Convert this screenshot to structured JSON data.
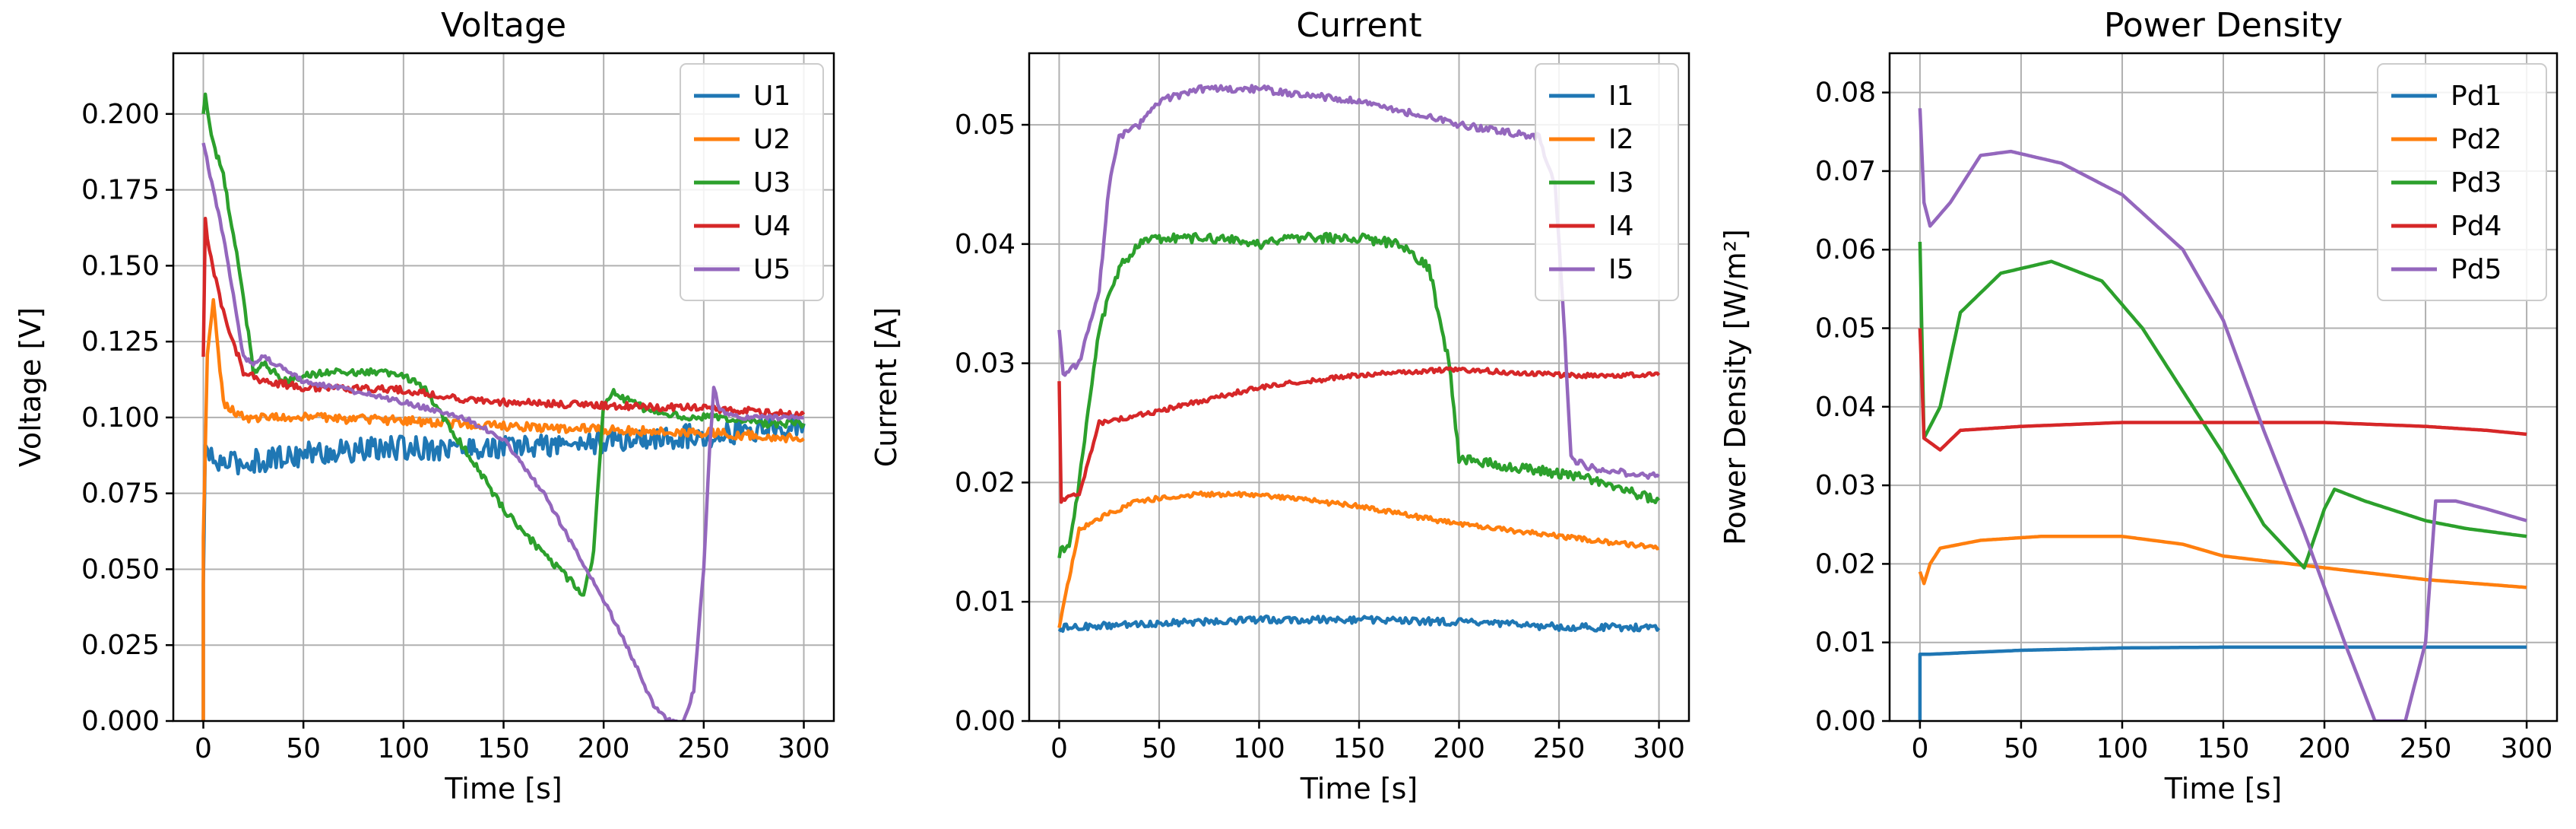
{
  "chart_data": [
    {
      "type": "line",
      "title": "Voltage",
      "xlabel": "Time [s]",
      "ylabel": "Voltage [V]",
      "xlim": [
        -15,
        315
      ],
      "ylim": [
        0,
        0.22
      ],
      "xticks": [
        0,
        50,
        100,
        150,
        200,
        250,
        300
      ],
      "yticks": [
        0,
        0.025,
        0.05,
        0.075,
        0.1,
        0.125,
        0.15,
        0.175,
        0.2
      ],
      "ytick_labels": [
        "0.000",
        "0.025",
        "0.050",
        "0.075",
        "0.100",
        "0.125",
        "0.150",
        "0.175",
        "0.200"
      ],
      "grid": true,
      "legend_position": "top-right",
      "series": [
        {
          "name": "U1",
          "color": "#1f77b4",
          "noise": 0.004,
          "points": [
            [
              0,
              0.0
            ],
            [
              0,
              0.045
            ],
            [
              1,
              0.09
            ],
            [
              5,
              0.085
            ],
            [
              20,
              0.085
            ],
            [
              50,
              0.088
            ],
            [
              100,
              0.09
            ],
            [
              150,
              0.09
            ],
            [
              200,
              0.092
            ],
            [
              250,
              0.094
            ],
            [
              300,
              0.098
            ]
          ]
        },
        {
          "name": "U2",
          "color": "#ff7f0e",
          "noise": 0.0015,
          "points": [
            [
              0,
              0.0
            ],
            [
              0,
              0.06
            ],
            [
              2,
              0.12
            ],
            [
              5,
              0.14
            ],
            [
              10,
              0.105
            ],
            [
              20,
              0.1
            ],
            [
              50,
              0.1
            ],
            [
              100,
              0.099
            ],
            [
              150,
              0.097
            ],
            [
              200,
              0.096
            ],
            [
              250,
              0.095
            ],
            [
              300,
              0.093
            ]
          ]
        },
        {
          "name": "U3",
          "color": "#2ca02c",
          "noise": 0.0012,
          "points": [
            [
              0,
              0.2
            ],
            [
              1,
              0.206
            ],
            [
              5,
              0.19
            ],
            [
              10,
              0.18
            ],
            [
              15,
              0.16
            ],
            [
              20,
              0.14
            ],
            [
              25,
              0.115
            ],
            [
              30,
              0.118
            ],
            [
              40,
              0.112
            ],
            [
              60,
              0.115
            ],
            [
              80,
              0.115
            ],
            [
              100,
              0.114
            ],
            [
              110,
              0.11
            ],
            [
              130,
              0.09
            ],
            [
              150,
              0.07
            ],
            [
              170,
              0.055
            ],
            [
              190,
              0.042
            ],
            [
              195,
              0.055
            ],
            [
              200,
              0.105
            ],
            [
              205,
              0.108
            ],
            [
              220,
              0.103
            ],
            [
              240,
              0.1
            ],
            [
              260,
              0.1
            ],
            [
              280,
              0.098
            ],
            [
              300,
              0.098
            ]
          ]
        },
        {
          "name": "U4",
          "color": "#d62728",
          "noise": 0.0012,
          "points": [
            [
              0,
              0.12
            ],
            [
              1,
              0.165
            ],
            [
              3,
              0.155
            ],
            [
              8,
              0.14
            ],
            [
              12,
              0.13
            ],
            [
              15,
              0.125
            ],
            [
              20,
              0.115
            ],
            [
              30,
              0.112
            ],
            [
              50,
              0.11
            ],
            [
              100,
              0.109
            ],
            [
              130,
              0.106
            ],
            [
              150,
              0.105
            ],
            [
              200,
              0.104
            ],
            [
              250,
              0.103
            ],
            [
              300,
              0.101
            ]
          ]
        },
        {
          "name": "U5",
          "color": "#9467bd",
          "noise": 0.0008,
          "points": [
            [
              0,
              0.19
            ],
            [
              5,
              0.175
            ],
            [
              10,
              0.16
            ],
            [
              15,
              0.14
            ],
            [
              20,
              0.12
            ],
            [
              25,
              0.118
            ],
            [
              30,
              0.12
            ],
            [
              50,
              0.112
            ],
            [
              80,
              0.108
            ],
            [
              100,
              0.105
            ],
            [
              130,
              0.1
            ],
            [
              150,
              0.093
            ],
            [
              170,
              0.075
            ],
            [
              200,
              0.04
            ],
            [
              215,
              0.02
            ],
            [
              225,
              0.005
            ],
            [
              232,
              0.0
            ],
            [
              240,
              0.0
            ],
            [
              245,
              0.01
            ],
            [
              250,
              0.05
            ],
            [
              253,
              0.09
            ],
            [
              255,
              0.11
            ],
            [
              258,
              0.102
            ],
            [
              270,
              0.1
            ],
            [
              300,
              0.1
            ]
          ]
        }
      ]
    },
    {
      "type": "line",
      "title": "Current",
      "xlabel": "Time [s]",
      "ylabel": "Current [A]",
      "xlim": [
        -15,
        315
      ],
      "ylim": [
        0,
        0.056
      ],
      "xticks": [
        0,
        50,
        100,
        150,
        200,
        250,
        300
      ],
      "yticks": [
        0,
        0.01,
        0.02,
        0.03,
        0.04,
        0.05
      ],
      "ytick_labels": [
        "0.00",
        "0.01",
        "0.02",
        "0.03",
        "0.04",
        "0.05"
      ],
      "grid": true,
      "legend_position": "top-right",
      "series": [
        {
          "name": "I1",
          "color": "#1f77b4",
          "noise": 0.0003,
          "points": [
            [
              0,
              0.0078
            ],
            [
              50,
              0.0082
            ],
            [
              100,
              0.0085
            ],
            [
              150,
              0.0085
            ],
            [
              200,
              0.0083
            ],
            [
              250,
              0.0079
            ],
            [
              300,
              0.0078
            ]
          ]
        },
        {
          "name": "I2",
          "color": "#ff7f0e",
          "noise": 0.0002,
          "points": [
            [
              0,
              0.008
            ],
            [
              5,
              0.012
            ],
            [
              10,
              0.016
            ],
            [
              20,
              0.017
            ],
            [
              40,
              0.0185
            ],
            [
              70,
              0.019
            ],
            [
              100,
              0.019
            ],
            [
              150,
              0.018
            ],
            [
              200,
              0.0165
            ],
            [
              250,
              0.0155
            ],
            [
              300,
              0.0145
            ]
          ]
        },
        {
          "name": "I3",
          "color": "#2ca02c",
          "noise": 0.0004,
          "points": [
            [
              0,
              0.014
            ],
            [
              5,
              0.015
            ],
            [
              10,
              0.02
            ],
            [
              20,
              0.033
            ],
            [
              30,
              0.038
            ],
            [
              40,
              0.04
            ],
            [
              50,
              0.0405
            ],
            [
              80,
              0.0405
            ],
            [
              100,
              0.04
            ],
            [
              120,
              0.0405
            ],
            [
              150,
              0.0405
            ],
            [
              170,
              0.04
            ],
            [
              185,
              0.038
            ],
            [
              195,
              0.03
            ],
            [
              200,
              0.022
            ],
            [
              220,
              0.0215
            ],
            [
              240,
              0.021
            ],
            [
              260,
              0.0205
            ],
            [
              280,
              0.0195
            ],
            [
              300,
              0.0185
            ]
          ]
        },
        {
          "name": "I4",
          "color": "#d62728",
          "noise": 0.0002,
          "points": [
            [
              0,
              0.0285
            ],
            [
              1,
              0.0185
            ],
            [
              10,
              0.019
            ],
            [
              20,
              0.025
            ],
            [
              50,
              0.026
            ],
            [
              100,
              0.028
            ],
            [
              150,
              0.029
            ],
            [
              200,
              0.0295
            ],
            [
              250,
              0.029
            ],
            [
              300,
              0.029
            ]
          ]
        },
        {
          "name": "I5",
          "color": "#9467bd",
          "noise": 0.0003,
          "points": [
            [
              0,
              0.033
            ],
            [
              2,
              0.029
            ],
            [
              10,
              0.03
            ],
            [
              20,
              0.036
            ],
            [
              25,
              0.045
            ],
            [
              30,
              0.049
            ],
            [
              40,
              0.05
            ],
            [
              50,
              0.052
            ],
            [
              70,
              0.053
            ],
            [
              100,
              0.053
            ],
            [
              150,
              0.052
            ],
            [
              200,
              0.05
            ],
            [
              240,
              0.049
            ],
            [
              248,
              0.045
            ],
            [
              252,
              0.035
            ],
            [
              256,
              0.022
            ],
            [
              270,
              0.021
            ],
            [
              300,
              0.0205
            ]
          ]
        }
      ]
    },
    {
      "type": "line",
      "title": "Power Density",
      "xlabel": "Time [s]",
      "ylabel": "Power Density [W/m²]",
      "xlim": [
        -15,
        315
      ],
      "ylim": [
        0,
        0.085
      ],
      "xticks": [
        0,
        50,
        100,
        150,
        200,
        250,
        300
      ],
      "yticks": [
        0,
        0.01,
        0.02,
        0.03,
        0.04,
        0.05,
        0.06,
        0.07,
        0.08
      ],
      "ytick_labels": [
        "0.00",
        "0.01",
        "0.02",
        "0.03",
        "0.04",
        "0.05",
        "0.06",
        "0.07",
        "0.08"
      ],
      "grid": true,
      "legend_position": "top-right",
      "series": [
        {
          "name": "Pd1",
          "color": "#1f77b4",
          "noise": 0.0,
          "points": [
            [
              0,
              0.0
            ],
            [
              0,
              0.0085
            ],
            [
              5,
              0.0085
            ],
            [
              50,
              0.009
            ],
            [
              100,
              0.0093
            ],
            [
              150,
              0.0094
            ],
            [
              200,
              0.0094
            ],
            [
              250,
              0.0094
            ],
            [
              300,
              0.0094
            ]
          ]
        },
        {
          "name": "Pd2",
          "color": "#ff7f0e",
          "noise": 0.0,
          "points": [
            [
              0,
              0.019
            ],
            [
              2,
              0.0175
            ],
            [
              5,
              0.02
            ],
            [
              10,
              0.022
            ],
            [
              30,
              0.023
            ],
            [
              60,
              0.0235
            ],
            [
              100,
              0.0235
            ],
            [
              130,
              0.0225
            ],
            [
              150,
              0.021
            ],
            [
              200,
              0.0195
            ],
            [
              250,
              0.018
            ],
            [
              300,
              0.017
            ]
          ]
        },
        {
          "name": "Pd3",
          "color": "#2ca02c",
          "noise": 0.0,
          "points": [
            [
              0,
              0.061
            ],
            [
              2,
              0.036
            ],
            [
              10,
              0.04
            ],
            [
              20,
              0.052
            ],
            [
              40,
              0.057
            ],
            [
              65,
              0.0585
            ],
            [
              90,
              0.056
            ],
            [
              110,
              0.05
            ],
            [
              130,
              0.042
            ],
            [
              150,
              0.034
            ],
            [
              170,
              0.025
            ],
            [
              190,
              0.0195
            ],
            [
              200,
              0.027
            ],
            [
              205,
              0.0295
            ],
            [
              220,
              0.028
            ],
            [
              250,
              0.0255
            ],
            [
              270,
              0.0245
            ],
            [
              300,
              0.0235
            ]
          ]
        },
        {
          "name": "Pd4",
          "color": "#d62728",
          "noise": 0.0,
          "points": [
            [
              0,
              0.05
            ],
            [
              2,
              0.036
            ],
            [
              10,
              0.0345
            ],
            [
              20,
              0.037
            ],
            [
              50,
              0.0375
            ],
            [
              100,
              0.038
            ],
            [
              150,
              0.038
            ],
            [
              200,
              0.038
            ],
            [
              250,
              0.0375
            ],
            [
              280,
              0.037
            ],
            [
              300,
              0.0365
            ]
          ]
        },
        {
          "name": "Pd5",
          "color": "#9467bd",
          "noise": 0.0,
          "points": [
            [
              0,
              0.078
            ],
            [
              2,
              0.066
            ],
            [
              5,
              0.063
            ],
            [
              15,
              0.066
            ],
            [
              30,
              0.072
            ],
            [
              45,
              0.0725
            ],
            [
              70,
              0.071
            ],
            [
              100,
              0.067
            ],
            [
              130,
              0.06
            ],
            [
              150,
              0.051
            ],
            [
              170,
              0.037
            ],
            [
              190,
              0.024
            ],
            [
              210,
              0.01
            ],
            [
              225,
              0.0
            ],
            [
              240,
              0.0
            ],
            [
              250,
              0.01
            ],
            [
              255,
              0.028
            ],
            [
              265,
              0.028
            ],
            [
              280,
              0.027
            ],
            [
              300,
              0.0255
            ]
          ]
        }
      ]
    }
  ]
}
